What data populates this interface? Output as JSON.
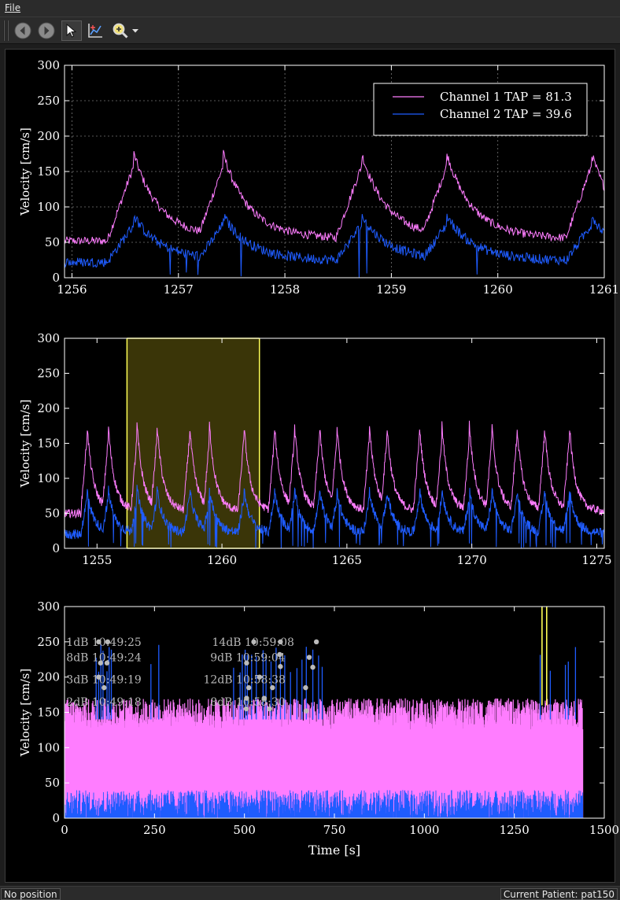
{
  "menubar": {
    "file_label": "File"
  },
  "toolbar": {
    "buttons": [
      "back-icon",
      "forward-icon",
      "select-pointer-icon",
      "zoom-axes-icon",
      "magnifier-zoom-icon",
      "dropdown-arrow-icon"
    ]
  },
  "status": {
    "position_text": "No position",
    "patient_text": "Current Patient: pat150"
  },
  "colors": {
    "channel1": "#ff7dff",
    "channel2": "#1f5cff",
    "selection_fill": "#3a3508",
    "selection_edge": "#ffff55",
    "background": "#000000",
    "markers": "#bbbbbb"
  },
  "chart_data": [
    {
      "type": "line",
      "ylabel": "Velocity [cm/s]",
      "xlim": [
        1255.93,
        1261.0
      ],
      "ylim": [
        0,
        300
      ],
      "xticks": [
        "1256",
        "1257",
        "1258",
        "1259",
        "1260",
        "1261"
      ],
      "yticks": [
        "0",
        "50",
        "100",
        "150",
        "200",
        "250",
        "300"
      ],
      "grid": true,
      "legend_position": "top-right",
      "beats": [
        1256.58,
        1257.42,
        1258.72,
        1259.52,
        1260.88
      ],
      "series": [
        {
          "name": "Channel 1 TAP = 81.3",
          "baseline": 52,
          "peak": 158,
          "tail": 70
        },
        {
          "name": "Channel 2 TAP = 39.6",
          "baseline": 22,
          "peak": 75,
          "tail": 35
        }
      ]
    },
    {
      "type": "line",
      "ylabel": "Velocity [cm/s]",
      "xlim": [
        1253.7,
        1275.3
      ],
      "ylim": [
        0,
        300
      ],
      "xticks": [
        "1255",
        "1260",
        "1265",
        "1270",
        "1275"
      ],
      "yticks": [
        "0",
        "50",
        "100",
        "150",
        "200",
        "250",
        "300"
      ],
      "grid": false,
      "selection_range": [
        1256.2,
        1261.5
      ],
      "beats": [
        1254.6,
        1255.45,
        1256.6,
        1257.4,
        1258.7,
        1259.5,
        1260.88,
        1262.1,
        1262.9,
        1263.9,
        1264.6,
        1265.9,
        1266.6,
        1267.9,
        1268.8,
        1269.9,
        1270.8,
        1271.8,
        1272.9,
        1273.9
      ],
      "series": [
        {
          "name": "Channel 1",
          "baseline": 50,
          "peak": 158,
          "tail": 70
        },
        {
          "name": "Channel 2",
          "baseline": 20,
          "peak": 72,
          "tail": 33
        }
      ]
    },
    {
      "type": "line",
      "xlabel": "Time [s]",
      "ylabel": "Velocity [cm/s]",
      "xlim": [
        0,
        1500
      ],
      "ylim": [
        0,
        300
      ],
      "xticks": [
        "0",
        "250",
        "500",
        "750",
        "1000",
        "1250",
        "1500"
      ],
      "yticks": [
        "0",
        "50",
        "100",
        "150",
        "200",
        "250",
        "300"
      ],
      "grid": false,
      "data_end": 1440,
      "series": [
        {
          "name": "Channel 1",
          "min": 0,
          "max": 160
        },
        {
          "name": "Channel 2",
          "min": 0,
          "max": 40
        }
      ],
      "selection_lines": [
        1327,
        1340
      ],
      "spikes": [
        88,
        95,
        101,
        107,
        118,
        124,
        130,
        240,
        262,
        470,
        488,
        494,
        502,
        508,
        520,
        533,
        552,
        560,
        574,
        588,
        600,
        612,
        628,
        646,
        660,
        672,
        690,
        706,
        716,
        1322,
        1350,
        1392,
        1400,
        1420
      ],
      "markers": [
        [
          95,
          250
        ],
        [
          120,
          250
        ],
        [
          100,
          220
        ],
        [
          118,
          220
        ],
        [
          95,
          200
        ],
        [
          110,
          185
        ],
        [
          526,
          250
        ],
        [
          600,
          250
        ],
        [
          506,
          220
        ],
        [
          598,
          232
        ],
        [
          600,
          215
        ],
        [
          542,
          200
        ],
        [
          512,
          185
        ],
        [
          578,
          185
        ],
        [
          670,
          185
        ],
        [
          506,
          170
        ],
        [
          555,
          170
        ],
        [
          700,
          250
        ],
        [
          680,
          228
        ],
        [
          690,
          214
        ],
        [
          505,
          155
        ],
        [
          570,
          155
        ],
        [
          672,
          152
        ]
      ],
      "annotations": [
        {
          "text": "14dB 10:59:08",
          "x": 410,
          "y": 250
        },
        {
          "text": "9dB 10:59:04",
          "x": 405,
          "y": 228
        },
        {
          "text": "12dB 10:58:38",
          "x": 386,
          "y": 197
        },
        {
          "text": "8dB 10:58:30",
          "x": 405,
          "y": 165
        },
        {
          "text": "1dB 10:49:25",
          "x": 5,
          "y": 250
        },
        {
          "text": "8dB 10:49:24",
          "x": 5,
          "y": 228
        },
        {
          "text": "3dB 10:49:19",
          "x": 5,
          "y": 197
        },
        {
          "text": "2dB 10:49:18",
          "x": 5,
          "y": 165
        }
      ]
    }
  ]
}
